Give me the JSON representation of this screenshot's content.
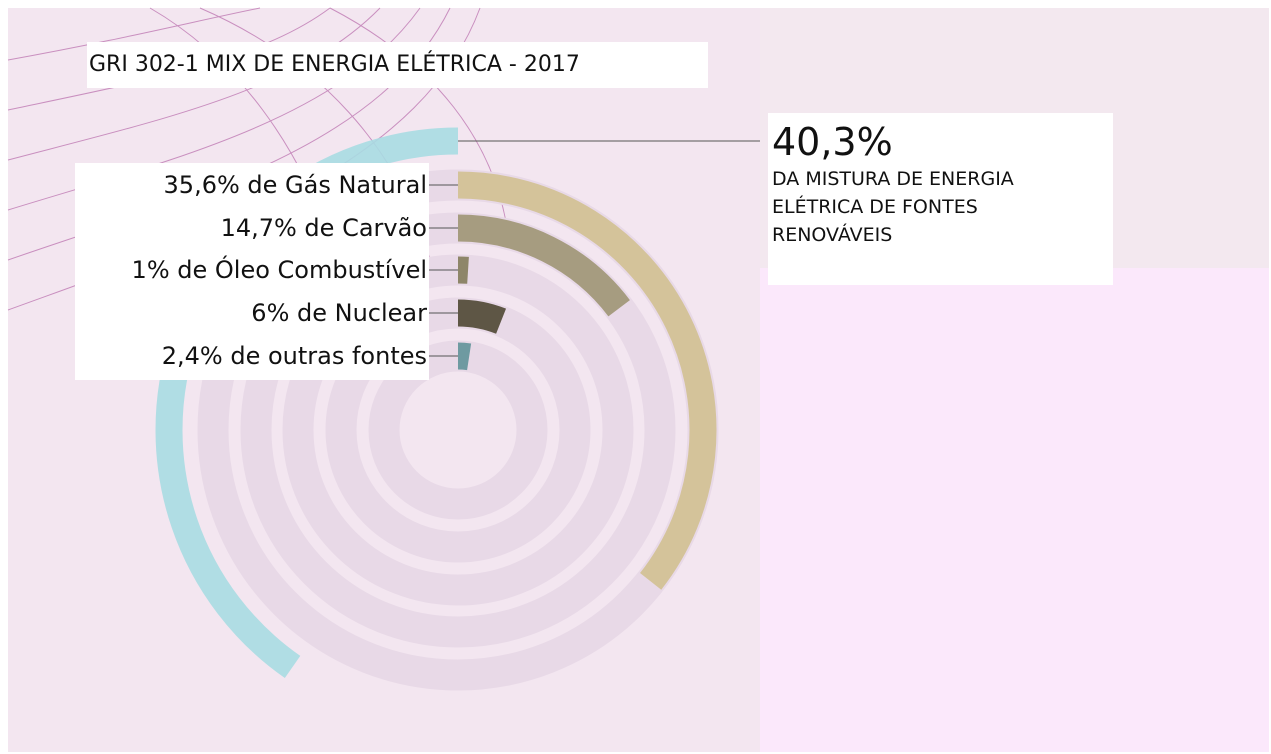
{
  "chart_data": {
    "type": "radial-bar",
    "title": "GRI 302-1 MIX DE ENERGIA ELÉTRICA - 2017",
    "ylim": [
      0,
      100
    ],
    "highlight": {
      "value": 40.3,
      "value_label": "40,3%",
      "caption": "DA MISTURA DE ENERGIA ELÉTRICA DE FONTES RENOVÁVEIS",
      "color": "#a9dbe2"
    },
    "values": [
      35.6,
      14.7,
      1,
      6,
      2.4
    ],
    "value_labels": [
      "35,6% de Gás Natural",
      "14,7% de Carvão",
      "1% de Óleo Combustível",
      "6% de Nuclear",
      "2,4% de outras fontes"
    ],
    "colors": [
      "#d4c39a",
      "#a69c80",
      "#8e8669",
      "#5e5645",
      "#6e9aa1"
    ]
  }
}
